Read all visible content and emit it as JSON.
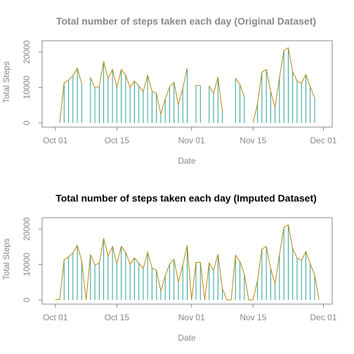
{
  "chart_data": [
    {
      "type": "line",
      "title": "Total number of steps taken each day (Original Dataset)",
      "xlabel": "Date",
      "ylabel": "Total Steps",
      "x_ticks": [
        "Oct 01",
        "Oct 15",
        "Nov 01",
        "Nov 15",
        "Dec 01"
      ],
      "y_ticks": [
        "0",
        "10000",
        "20000"
      ],
      "ylim": [
        0,
        22000
      ],
      "xlim": [
        "2012-09-28",
        "2012-12-03"
      ],
      "grid": false,
      "histogram_color": "#2aa198",
      "line_color": "#b8860b",
      "x": [
        "2012-10-01",
        "2012-10-02",
        "2012-10-03",
        "2012-10-04",
        "2012-10-05",
        "2012-10-06",
        "2012-10-07",
        "2012-10-08",
        "2012-10-09",
        "2012-10-10",
        "2012-10-11",
        "2012-10-12",
        "2012-10-13",
        "2012-10-14",
        "2012-10-15",
        "2012-10-16",
        "2012-10-17",
        "2012-10-18",
        "2012-10-19",
        "2012-10-20",
        "2012-10-21",
        "2012-10-22",
        "2012-10-23",
        "2012-10-24",
        "2012-10-25",
        "2012-10-26",
        "2012-10-27",
        "2012-10-28",
        "2012-10-29",
        "2012-10-30",
        "2012-10-31",
        "2012-11-01",
        "2012-11-02",
        "2012-11-03",
        "2012-11-04",
        "2012-11-05",
        "2012-11-06",
        "2012-11-07",
        "2012-11-08",
        "2012-11-09",
        "2012-11-10",
        "2012-11-11",
        "2012-11-12",
        "2012-11-13",
        "2012-11-14",
        "2012-11-15",
        "2012-11-16",
        "2012-11-17",
        "2012-11-18",
        "2012-11-19",
        "2012-11-20",
        "2012-11-21",
        "2012-11-22",
        "2012-11-23",
        "2012-11-24",
        "2012-11-25",
        "2012-11-26",
        "2012-11-27",
        "2012-11-28",
        "2012-11-29",
        "2012-11-30"
      ],
      "values": [
        null,
        126,
        11352,
        12116,
        13294,
        15420,
        11015,
        null,
        12811,
        9900,
        10304,
        17382,
        12426,
        15098,
        10139,
        15084,
        13452,
        10056,
        11829,
        10395,
        8821,
        13460,
        8918,
        8355,
        2492,
        6778,
        10119,
        11458,
        5018,
        9819,
        15414,
        null,
        10600,
        10571,
        null,
        10439,
        8334,
        12883,
        3219,
        null,
        null,
        12608,
        10765,
        7336,
        null,
        41,
        5441,
        14339,
        15110,
        8841,
        4472,
        12787,
        20427,
        21194,
        14478,
        11834,
        11162,
        13646,
        10183,
        7047,
        null
      ]
    },
    {
      "type": "line",
      "title": "Total number of steps taken each day (Imputed Dataset)",
      "xlabel": "Date",
      "ylabel": "Total Steps",
      "x_ticks": [
        "Oct 01",
        "Oct 15",
        "Nov 01",
        "Nov 15",
        "Dec 01"
      ],
      "y_ticks": [
        "0",
        "10000",
        "20000"
      ],
      "ylim": [
        0,
        22000
      ],
      "xlim": [
        "2012-09-28",
        "2012-12-03"
      ],
      "grid": false,
      "histogram_color": "#2aa198",
      "line_color": "#b8860b",
      "x": [
        "2012-10-01",
        "2012-10-02",
        "2012-10-03",
        "2012-10-04",
        "2012-10-05",
        "2012-10-06",
        "2012-10-07",
        "2012-10-08",
        "2012-10-09",
        "2012-10-10",
        "2012-10-11",
        "2012-10-12",
        "2012-10-13",
        "2012-10-14",
        "2012-10-15",
        "2012-10-16",
        "2012-10-17",
        "2012-10-18",
        "2012-10-19",
        "2012-10-20",
        "2012-10-21",
        "2012-10-22",
        "2012-10-23",
        "2012-10-24",
        "2012-10-25",
        "2012-10-26",
        "2012-10-27",
        "2012-10-28",
        "2012-10-29",
        "2012-10-30",
        "2012-10-31",
        "2012-11-01",
        "2012-11-02",
        "2012-11-03",
        "2012-11-04",
        "2012-11-05",
        "2012-11-06",
        "2012-11-07",
        "2012-11-08",
        "2012-11-09",
        "2012-11-10",
        "2012-11-11",
        "2012-11-12",
        "2012-11-13",
        "2012-11-14",
        "2012-11-15",
        "2012-11-16",
        "2012-11-17",
        "2012-11-18",
        "2012-11-19",
        "2012-11-20",
        "2012-11-21",
        "2012-11-22",
        "2012-11-23",
        "2012-11-24",
        "2012-11-25",
        "2012-11-26",
        "2012-11-27",
        "2012-11-28",
        "2012-11-29",
        "2012-11-30"
      ],
      "values": [
        0,
        126,
        11352,
        12116,
        13294,
        15420,
        11015,
        0,
        12811,
        9900,
        10304,
        17382,
        12426,
        15098,
        10139,
        15084,
        13452,
        10056,
        11829,
        10395,
        8821,
        13460,
        8918,
        8355,
        2492,
        6778,
        10119,
        11458,
        5018,
        9819,
        15414,
        0,
        10600,
        10571,
        0,
        10439,
        8334,
        12883,
        3219,
        0,
        0,
        12608,
        10765,
        7336,
        0,
        41,
        5441,
        14339,
        15110,
        8841,
        4472,
        12787,
        20427,
        21194,
        14478,
        11834,
        11162,
        13646,
        10183,
        7047,
        0
      ]
    }
  ]
}
